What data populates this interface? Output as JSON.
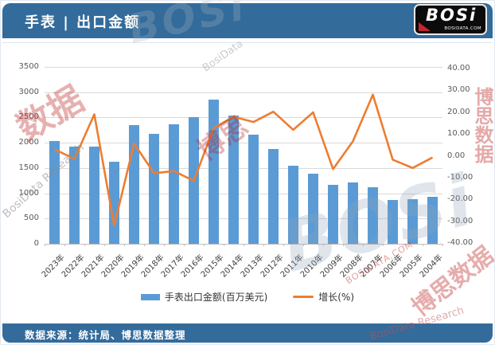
{
  "header": {
    "title": "手表 | 出口金额",
    "logo": {
      "text": "BOSi",
      "subtext": "BOSIDATA.COM"
    }
  },
  "footer": {
    "source_note": "数据来源：统计局、博思数据整理"
  },
  "legend": {
    "bars_label": "手表出口金额(百万美元)",
    "line_label": "增长(%)"
  },
  "colors": {
    "header_bg": "#336B9B",
    "bar": "#5B9BD5",
    "line": "#ED7D31",
    "gridline": "#D9D9D9",
    "axis_text": "#595959"
  },
  "watermarks": [
    "BOSi",
    "BosiData",
    "数据",
    "BosiData Research",
    "博思",
    "BOSi",
    "博思数据",
    "博思数据",
    "BosiData Research",
    "BOSIDATA.COM"
  ],
  "chart_data": {
    "type": "bar",
    "subtype": "combo-bar-line-dual-axis",
    "title": "手表 | 出口金额",
    "categories": [
      "2023年",
      "2022年",
      "2021年",
      "2020年",
      "2019年",
      "2018年",
      "2017年",
      "2016年",
      "2015年",
      "2014年",
      "2013年",
      "2012年",
      "2011年",
      "2010年",
      "2009年",
      "2008年",
      "2007年",
      "2006年",
      "2005年",
      "2004年"
    ],
    "series": [
      {
        "name": "手表出口金额(百万美元)",
        "type": "bar",
        "axis": "left",
        "values": [
          2035,
          1930,
          1925,
          1620,
          2355,
          2175,
          2370,
          2510,
          2855,
          2540,
          2160,
          1880,
          1545,
          1385,
          1160,
          1210,
          1115,
          870,
          885,
          935
        ]
      },
      {
        "name": "增长(%)",
        "type": "line",
        "axis": "right",
        "values": [
          3.0,
          -1.5,
          19.0,
          -32.0,
          5.6,
          -8.0,
          -7.0,
          -11.5,
          12.7,
          17.9,
          15.5,
          20.2,
          11.9,
          19.9,
          -6.1,
          6.7,
          28.0,
          -1.8,
          -5.6,
          -0.8
        ]
      }
    ],
    "left_axis": {
      "min": 0,
      "max": 3500,
      "step": 500,
      "tick_labels": [
        "3500",
        "3000",
        "2500",
        "2000",
        "1500",
        "1000",
        "500",
        "0"
      ]
    },
    "right_axis": {
      "min": -40,
      "max": 40,
      "step": 10,
      "tick_labels": [
        "40.00",
        "30.00",
        "20.00",
        "10.00",
        "0.00",
        "-10.00",
        "-20.00",
        "-30.00",
        "-40.00"
      ]
    },
    "grid": true,
    "legend_position": "bottom"
  }
}
